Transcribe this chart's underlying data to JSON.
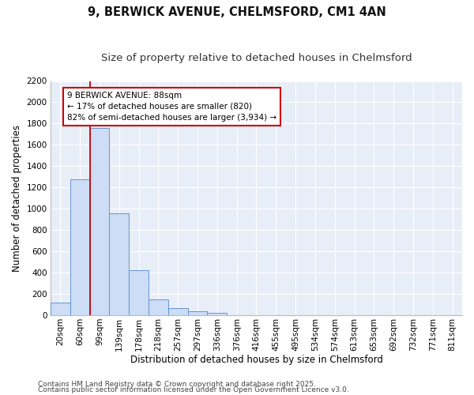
{
  "title_line1": "9, BERWICK AVENUE, CHELMSFORD, CM1 4AN",
  "title_line2": "Size of property relative to detached houses in Chelmsford",
  "xlabel": "Distribution of detached houses by size in Chelmsford",
  "ylabel": "Number of detached properties",
  "categories": [
    "20sqm",
    "60sqm",
    "99sqm",
    "139sqm",
    "178sqm",
    "218sqm",
    "257sqm",
    "297sqm",
    "336sqm",
    "376sqm",
    "416sqm",
    "455sqm",
    "495sqm",
    "534sqm",
    "574sqm",
    "613sqm",
    "653sqm",
    "692sqm",
    "732sqm",
    "771sqm",
    "811sqm"
  ],
  "values": [
    120,
    1280,
    1760,
    960,
    420,
    150,
    70,
    40,
    22,
    0,
    0,
    0,
    0,
    0,
    0,
    0,
    0,
    0,
    0,
    0,
    0
  ],
  "bar_color": "#ccddf5",
  "bar_edge_color": "#5588cc",
  "vline_color": "#cc0000",
  "vline_x": 1.5,
  "annotation_text": "9 BERWICK AVENUE: 88sqm\n← 17% of detached houses are smaller (820)\n82% of semi-detached houses are larger (3,934) →",
  "annotation_box_edgecolor": "#cc0000",
  "annotation_bg": "#ffffff",
  "ylim_max": 2200,
  "yticks": [
    0,
    200,
    400,
    600,
    800,
    1000,
    1200,
    1400,
    1600,
    1800,
    2000,
    2200
  ],
  "background_color": "#ffffff",
  "plot_bg_color": "#e8eef8",
  "grid_color": "#ffffff",
  "footnote_line1": "Contains HM Land Registry data © Crown copyright and database right 2025.",
  "footnote_line2": "Contains public sector information licensed under the Open Government Licence v3.0.",
  "title_fontsize": 10.5,
  "subtitle_fontsize": 9.5,
  "axis_label_fontsize": 8.5,
  "tick_fontsize": 7.5,
  "annotation_fontsize": 7.5,
  "footnote_fontsize": 6.5
}
